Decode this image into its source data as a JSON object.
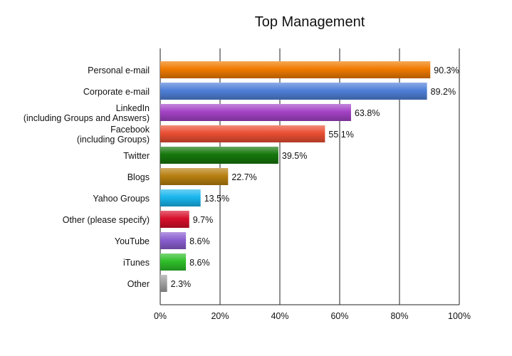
{
  "chart_data": {
    "type": "bar",
    "orientation": "horizontal",
    "title": "Top Management",
    "xlabel": "",
    "ylabel": "",
    "xlim": [
      0,
      100
    ],
    "grid": true,
    "legend": "none",
    "categories": [
      [
        "Personal e-mail"
      ],
      [
        "Corporate e-mail"
      ],
      [
        "LinkedIn",
        "(including Groups and Answers)"
      ],
      [
        "Facebook",
        "(including Groups)"
      ],
      [
        "Twitter"
      ],
      [
        "Blogs"
      ],
      [
        "Yahoo Groups"
      ],
      [
        "Other (please specify)"
      ],
      [
        "YouTube"
      ],
      [
        "iTunes"
      ],
      [
        "Other"
      ]
    ],
    "values": [
      90.3,
      89.2,
      63.8,
      55.1,
      39.5,
      22.7,
      13.5,
      9.7,
      8.6,
      8.6,
      2.3
    ],
    "value_labels": [
      "90.3%",
      "89.2%",
      "63.8%",
      "55.1%",
      "39.5%",
      "22.7%",
      "13.5%",
      "9.7%",
      "8.6%",
      "8.6%",
      "2.3%"
    ],
    "x_ticks": [
      "0%",
      "20%",
      "40%",
      "60%",
      "80%",
      "100%"
    ],
    "colors": [
      "#f07a00",
      "#4f80d8",
      "#a443c6",
      "#ea4f33",
      "#16780c",
      "#b88010",
      "#19b6ee",
      "#d8102c",
      "#8a5ed0",
      "#2fbf2a",
      "#a0a0a0"
    ]
  }
}
